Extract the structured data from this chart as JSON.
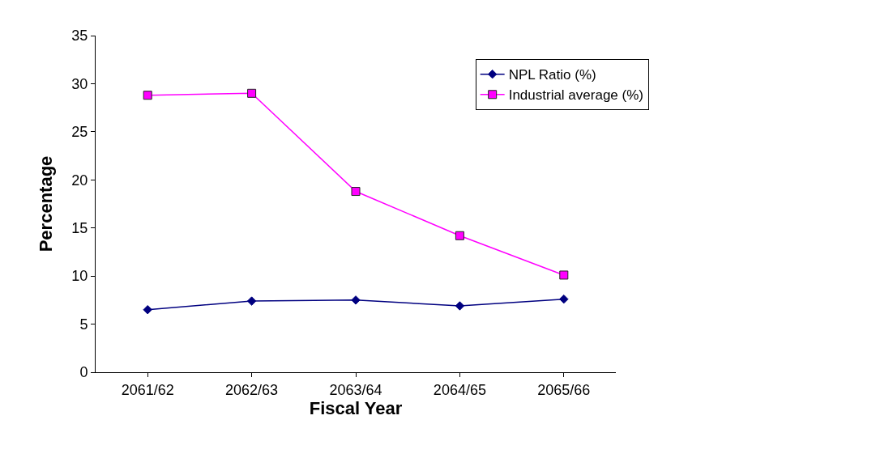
{
  "chart_data": {
    "type": "line",
    "xlabel": "Fiscal Year",
    "ylabel": "Percentage",
    "categories": [
      "2061/62",
      "2062/63",
      "2063/64",
      "2064/65",
      "2065/66"
    ],
    "series": [
      {
        "name": "NPL Ratio (%)",
        "color": "#000080",
        "marker": "diamond",
        "values": [
          6.5,
          7.4,
          7.5,
          6.9,
          7.6
        ]
      },
      {
        "name": "Industrial average (%)",
        "color": "#ff00ff",
        "marker": "square",
        "values": [
          28.8,
          29.0,
          18.8,
          14.2,
          10.1
        ]
      }
    ],
    "ylim": [
      0,
      35
    ],
    "yticks": [
      0,
      5,
      10,
      15,
      20,
      25,
      30,
      35
    ],
    "grid": false,
    "legend": "top right",
    "line_style": "solid"
  }
}
